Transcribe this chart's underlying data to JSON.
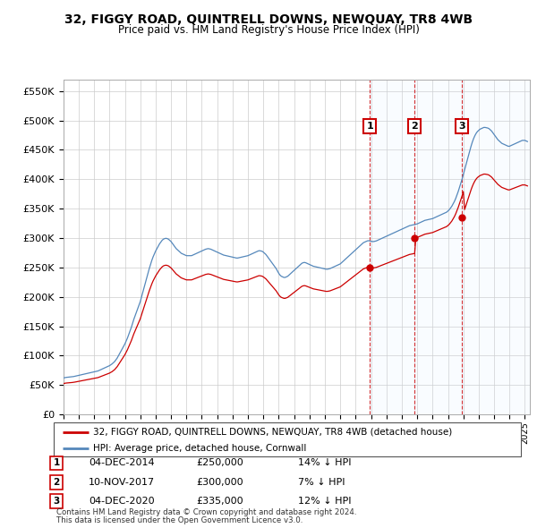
{
  "title": "32, FIGGY ROAD, QUINTRELL DOWNS, NEWQUAY, TR8 4WB",
  "subtitle": "Price paid vs. HM Land Registry's House Price Index (HPI)",
  "legend_line1": "32, FIGGY ROAD, QUINTRELL DOWNS, NEWQUAY, TR8 4WB (detached house)",
  "legend_line2": "HPI: Average price, detached house, Cornwall",
  "footnote1": "Contains HM Land Registry data © Crown copyright and database right 2024.",
  "footnote2": "This data is licensed under the Open Government Licence v3.0.",
  "transactions": [
    {
      "num": "1",
      "date": "04-DEC-2014",
      "price": "£250,000",
      "hpi": "14% ↓ HPI"
    },
    {
      "num": "2",
      "date": "10-NOV-2017",
      "price": "£300,000",
      "hpi": "7% ↓ HPI"
    },
    {
      "num": "3",
      "date": "04-DEC-2020",
      "price": "£335,000",
      "hpi": "12% ↓ HPI"
    }
  ],
  "hpi_monthly": [
    62000,
    62500,
    63000,
    63200,
    63500,
    63800,
    64000,
    64200,
    64500,
    65000,
    65500,
    66000,
    66500,
    67000,
    67500,
    68000,
    68500,
    69000,
    69500,
    70000,
    70500,
    71000,
    71500,
    72000,
    72500,
    73000,
    73500,
    74000,
    75000,
    76000,
    77000,
    78000,
    79000,
    80000,
    81000,
    82000,
    83000,
    84500,
    86000,
    88000,
    90000,
    93000,
    96000,
    100000,
    104000,
    108000,
    112000,
    116000,
    120000,
    125000,
    130000,
    136000,
    142000,
    148000,
    155000,
    162000,
    168000,
    174000,
    180000,
    186000,
    192000,
    200000,
    208000,
    216000,
    224000,
    232000,
    240000,
    248000,
    255000,
    262000,
    268000,
    273000,
    278000,
    282000,
    286000,
    290000,
    293000,
    296000,
    298000,
    299000,
    299500,
    299000,
    298000,
    296000,
    294000,
    291000,
    288000,
    285000,
    282000,
    280000,
    278000,
    276000,
    274000,
    273000,
    272000,
    271000,
    270000,
    270000,
    270000,
    270000,
    270000,
    271000,
    272000,
    273000,
    274000,
    275000,
    276000,
    277000,
    278000,
    279000,
    280000,
    281000,
    281500,
    282000,
    281500,
    281000,
    280000,
    279000,
    278000,
    277000,
    276000,
    275000,
    274000,
    273000,
    272000,
    271000,
    270500,
    270000,
    269500,
    269000,
    268500,
    268000,
    267500,
    267000,
    266500,
    266000,
    266000,
    266500,
    267000,
    267500,
    268000,
    268500,
    269000,
    269500,
    270000,
    271000,
    272000,
    273000,
    274000,
    275000,
    276000,
    277000,
    278000,
    278500,
    278000,
    277500,
    276000,
    274000,
    272000,
    269000,
    266000,
    263000,
    260000,
    257000,
    254000,
    251000,
    248000,
    244000,
    240000,
    237000,
    235000,
    234000,
    233000,
    233000,
    234000,
    235000,
    237000,
    239000,
    241000,
    243000,
    245000,
    247000,
    249000,
    251000,
    253000,
    255000,
    257000,
    258000,
    258500,
    258000,
    257000,
    256000,
    255000,
    254000,
    253000,
    252000,
    251500,
    251000,
    250500,
    250000,
    249500,
    249000,
    248500,
    248000,
    247500,
    247000,
    247000,
    247500,
    248000,
    249000,
    250000,
    251000,
    252000,
    253000,
    254000,
    255000,
    256000,
    258000,
    260000,
    262000,
    264000,
    266000,
    268000,
    270000,
    272000,
    274000,
    276000,
    278000,
    280000,
    282000,
    284000,
    286000,
    288000,
    290000,
    292000,
    293000,
    294000,
    295000,
    295500,
    295000,
    294500,
    294000,
    294000,
    294500,
    295000,
    296000,
    297000,
    298000,
    299000,
    300000,
    301000,
    302000,
    303000,
    304000,
    305000,
    306000,
    307000,
    308000,
    309000,
    310000,
    311000,
    312000,
    313000,
    314000,
    315000,
    316000,
    317000,
    318000,
    319000,
    320000,
    321000,
    321500,
    322000,
    322500,
    323000,
    323500,
    324000,
    325000,
    326000,
    327000,
    328000,
    329000,
    330000,
    330500,
    331000,
    331500,
    332000,
    332500,
    333000,
    334000,
    335000,
    336000,
    337000,
    338000,
    339000,
    340000,
    341000,
    342000,
    343000,
    344000,
    346000,
    348000,
    351000,
    354000,
    358000,
    362000,
    367000,
    373000,
    379000,
    386000,
    393000,
    400000,
    408000,
    416000,
    424000,
    432000,
    440000,
    448000,
    456000,
    463000,
    469000,
    474000,
    478000,
    481000,
    483000,
    485000,
    486000,
    487000,
    488000,
    488000,
    487500,
    487000,
    486000,
    484000,
    482000,
    479000,
    476000,
    473000,
    470000,
    467000,
    465000,
    463000,
    461000,
    460000,
    459000,
    458000,
    457000,
    456000,
    456000,
    457000,
    458000,
    459000,
    460000,
    461000,
    462000,
    463000,
    464000,
    465000,
    466000,
    466000,
    466000,
    465000,
    464000
  ],
  "price_paid_dates": [
    2014.917,
    2017.833,
    2020.917
  ],
  "price_paid_values": [
    250000,
    300000,
    335000
  ],
  "red_line_color": "#cc0000",
  "blue_line_color": "#5588bb",
  "fill_color": "#ddeeff",
  "annotation_border_color": "#cc0000",
  "grid_color": "#cccccc",
  "background_color": "#ffffff",
  "ylim": [
    0,
    570000
  ],
  "xlim_start": 1995.0,
  "xlim_end": 2025.3,
  "yticks": [
    0,
    50000,
    100000,
    150000,
    200000,
    250000,
    300000,
    350000,
    400000,
    450000,
    500000,
    550000
  ],
  "ytick_labels": [
    "£0",
    "£50K",
    "£100K",
    "£150K",
    "£200K",
    "£250K",
    "£300K",
    "£350K",
    "£400K",
    "£450K",
    "£500K",
    "£550K"
  ]
}
